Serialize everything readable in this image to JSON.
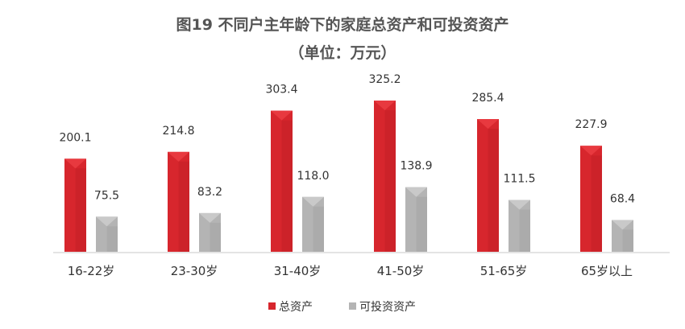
{
  "chart_data": {
    "type": "bar",
    "title": "图19 不同户主年龄下的家庭总资产和可投资资产",
    "subtitle": "（单位：万元）",
    "categories": [
      "16-22岁",
      "23-30岁",
      "31-40岁",
      "41-50岁",
      "51-65岁",
      "65岁以上"
    ],
    "series": [
      {
        "name": "总资产",
        "values": [
          200.1,
          214.8,
          303.4,
          325.2,
          285.4,
          227.9
        ],
        "color": "#d7262d"
      },
      {
        "name": "可投资资产",
        "values": [
          75.5,
          83.2,
          118.0,
          138.9,
          111.5,
          68.4
        ],
        "color": "#b4b4b4"
      }
    ],
    "value_labels": [
      [
        "200.1",
        "214.8",
        "303.4",
        "325.2",
        "285.4",
        "227.9"
      ],
      [
        "75.5",
        "83.2",
        "118.0",
        "138.9",
        "111.5",
        "68.4"
      ]
    ],
    "ylim": [
      0,
      325.2
    ],
    "grid": false,
    "legend": "bottom-center"
  }
}
